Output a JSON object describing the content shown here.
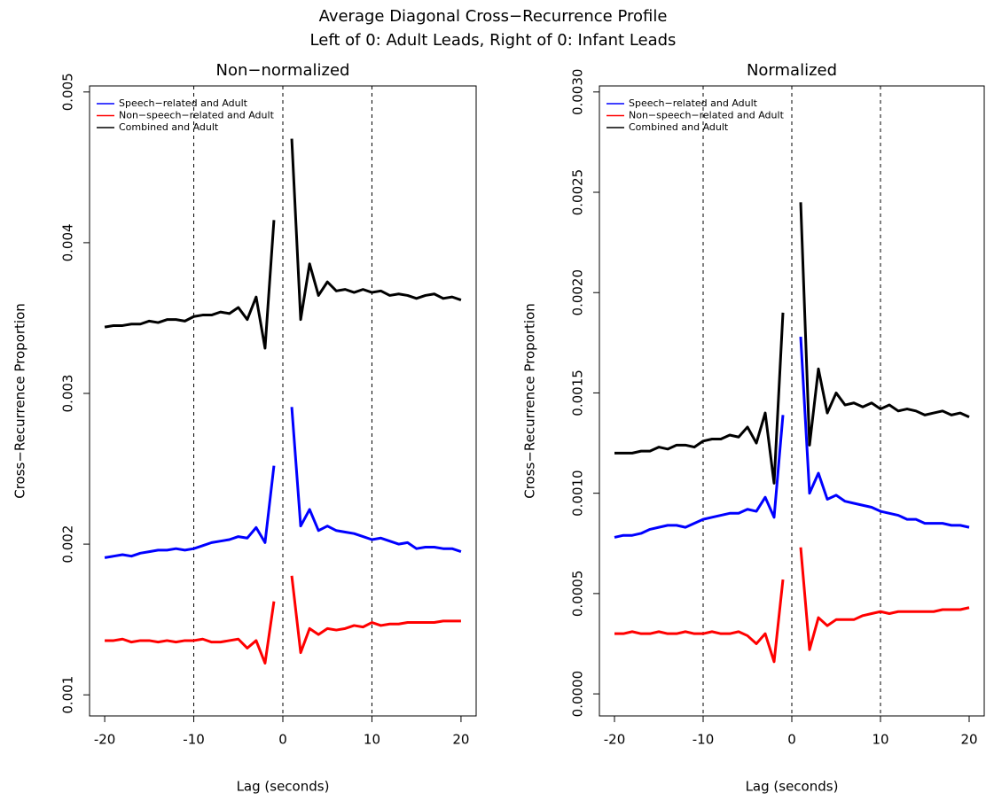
{
  "title": "Average Diagonal Cross−Recurrence Profile",
  "subtitle": "Left of 0: Adult Leads, Right of 0: Infant Leads",
  "chart_data": [
    {
      "type": "line",
      "title": "Non−normalized",
      "xlabel": "Lag (seconds)",
      "ylabel": "Cross−Recurrence Proportion",
      "x": [
        -20,
        -19,
        -18,
        -17,
        -16,
        -15,
        -14,
        -13,
        -12,
        -11,
        -10,
        -9,
        -8,
        -7,
        -6,
        -5,
        -4,
        -3,
        -2,
        -1,
        0,
        1,
        2,
        3,
        4,
        5,
        6,
        7,
        8,
        9,
        10,
        11,
        12,
        13,
        14,
        15,
        16,
        17,
        18,
        19,
        20
      ],
      "xlim": [
        -21.7,
        21.7
      ],
      "xticks": [
        -20,
        -10,
        0,
        10,
        20
      ],
      "ylim": [
        0.00086,
        0.00504
      ],
      "yticks": [
        0.001,
        0.002,
        0.003,
        0.004,
        0.005
      ],
      "vlines": [
        -10,
        0,
        10
      ],
      "legend": "top-left",
      "series": [
        {
          "name": "Speech−related and Adult",
          "color": "#0000ff",
          "values": [
            0.00191,
            0.00192,
            0.00193,
            0.00192,
            0.00194,
            0.00195,
            0.00196,
            0.00196,
            0.00197,
            0.00196,
            0.00197,
            0.00199,
            0.00201,
            0.00202,
            0.00203,
            0.00205,
            0.00204,
            0.00211,
            0.00201,
            0.00252,
            null,
            0.00291,
            0.00212,
            0.00223,
            0.00209,
            0.00212,
            0.00209,
            0.00208,
            0.00207,
            0.00205,
            0.00203,
            0.00204,
            0.00202,
            0.002,
            0.00201,
            0.00197,
            0.00198,
            0.00198,
            0.00197,
            0.00197,
            0.00195
          ]
        },
        {
          "name": "Non−speech−related and Adult",
          "color": "#ff0000",
          "values": [
            0.00136,
            0.00136,
            0.00137,
            0.00135,
            0.00136,
            0.00136,
            0.00135,
            0.00136,
            0.00135,
            0.00136,
            0.00136,
            0.00137,
            0.00135,
            0.00135,
            0.00136,
            0.00137,
            0.00131,
            0.00136,
            0.00121,
            0.00162,
            null,
            0.00179,
            0.00128,
            0.00144,
            0.0014,
            0.00144,
            0.00143,
            0.00144,
            0.00146,
            0.00145,
            0.00148,
            0.00146,
            0.00147,
            0.00147,
            0.00148,
            0.00148,
            0.00148,
            0.00148,
            0.00149,
            0.00149,
            0.00149
          ]
        },
        {
          "name": "Combined and Adult",
          "color": "#000000",
          "values": [
            0.00344,
            0.00345,
            0.00345,
            0.00346,
            0.00346,
            0.00348,
            0.00347,
            0.00349,
            0.00349,
            0.00348,
            0.00351,
            0.00352,
            0.00352,
            0.00354,
            0.00353,
            0.00357,
            0.00349,
            0.00364,
            0.0033,
            0.00415,
            null,
            0.00469,
            0.00349,
            0.00386,
            0.00365,
            0.00374,
            0.00368,
            0.00369,
            0.00367,
            0.00369,
            0.00367,
            0.00368,
            0.00365,
            0.00366,
            0.00365,
            0.00363,
            0.00365,
            0.00366,
            0.00363,
            0.00364,
            0.00362
          ]
        }
      ]
    },
    {
      "type": "line",
      "title": "Normalized",
      "xlabel": "Lag (seconds)",
      "ylabel": "Cross−Recurrence Proportion",
      "x": [
        -20,
        -19,
        -18,
        -17,
        -16,
        -15,
        -14,
        -13,
        -12,
        -11,
        -10,
        -9,
        -8,
        -7,
        -6,
        -5,
        -4,
        -3,
        -2,
        -1,
        0,
        1,
        2,
        3,
        4,
        5,
        6,
        7,
        8,
        9,
        10,
        11,
        12,
        13,
        14,
        15,
        16,
        17,
        18,
        19,
        20
      ],
      "xlim": [
        -21.7,
        21.7
      ],
      "xticks": [
        -20,
        -10,
        0,
        10,
        20
      ],
      "ylim": [
        -0.00011,
        0.00303
      ],
      "yticks": [
        {
          "value": 0,
          "label": "0.0000"
        },
        0.0005,
        {
          "value": 0.001,
          "label": "0.0010"
        },
        {
          "value": 0.0015,
          "label": "0.0015"
        },
        {
          "value": 0.002,
          "label": "0.0020"
        },
        {
          "value": 0.0025,
          "label": "0.0025"
        },
        {
          "value": 0.003,
          "label": "0.0030"
        }
      ],
      "vlines": [
        -10,
        0,
        10
      ],
      "legend": "top-left",
      "series": [
        {
          "name": "Speech−related and Adult",
          "color": "#0000ff",
          "values": [
            0.00078,
            0.00079,
            0.00079,
            0.0008,
            0.00082,
            0.00083,
            0.00084,
            0.00084,
            0.00083,
            0.00085,
            0.00087,
            0.00088,
            0.00089,
            0.0009,
            0.0009,
            0.00092,
            0.00091,
            0.00098,
            0.00088,
            0.00139,
            null,
            0.00178,
            0.001,
            0.0011,
            0.00097,
            0.00099,
            0.00096,
            0.00095,
            0.00094,
            0.00093,
            0.00091,
            0.0009,
            0.00089,
            0.00087,
            0.00087,
            0.00085,
            0.00085,
            0.00085,
            0.00084,
            0.00084,
            0.00083
          ]
        },
        {
          "name": "Non−speech−related and Adult",
          "color": "#ff0000",
          "values": [
            0.0003,
            0.0003,
            0.00031,
            0.0003,
            0.0003,
            0.00031,
            0.0003,
            0.0003,
            0.00031,
            0.0003,
            0.0003,
            0.00031,
            0.0003,
            0.0003,
            0.00031,
            0.00029,
            0.00025,
            0.0003,
            0.00016,
            0.00057,
            null,
            0.00073,
            0.00022,
            0.00038,
            0.00034,
            0.00037,
            0.00037,
            0.00037,
            0.00039,
            0.0004,
            0.00041,
            0.0004,
            0.00041,
            0.00041,
            0.00041,
            0.00041,
            0.00041,
            0.00042,
            0.00042,
            0.00042,
            0.00043
          ]
        },
        {
          "name": "Combined and Adult",
          "color": "#000000",
          "values": [
            0.0012,
            0.0012,
            0.0012,
            0.00121,
            0.00121,
            0.00123,
            0.00122,
            0.00124,
            0.00124,
            0.00123,
            0.00126,
            0.00127,
            0.00127,
            0.00129,
            0.00128,
            0.00133,
            0.00125,
            0.0014,
            0.00105,
            0.0019,
            null,
            0.00245,
            0.00124,
            0.00162,
            0.0014,
            0.0015,
            0.00144,
            0.00145,
            0.00143,
            0.00145,
            0.00142,
            0.00144,
            0.00141,
            0.00142,
            0.00141,
            0.00139,
            0.0014,
            0.00141,
            0.00139,
            0.0014,
            0.00138
          ]
        }
      ]
    }
  ]
}
